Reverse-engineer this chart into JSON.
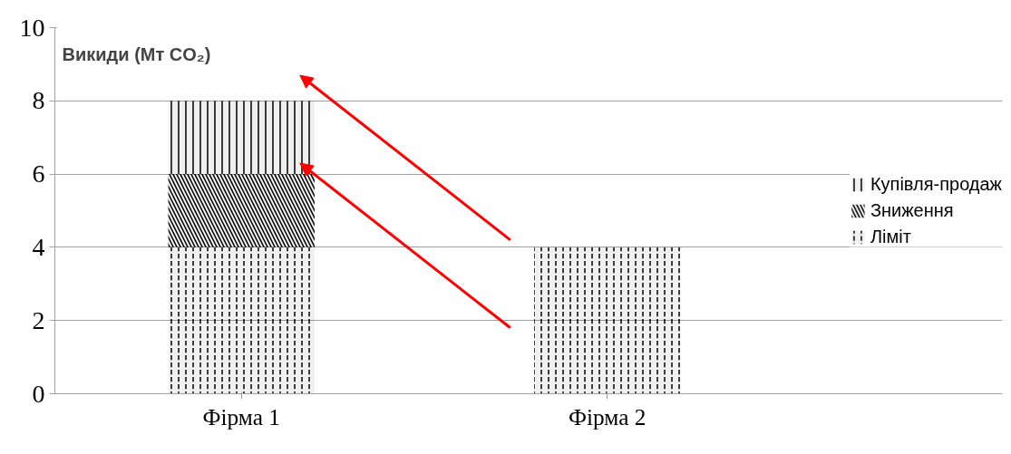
{
  "chart_data": {
    "type": "bar",
    "stacked": true,
    "ylabel": "Викиди (Мт CO₂)",
    "categories": [
      "Фірма 1",
      "Фірма 2"
    ],
    "series": [
      {
        "name": "Ліміт",
        "color": "#000000",
        "values": [
          4,
          4
        ]
      },
      {
        "name": "Зниження",
        "color": "#000000",
        "values": [
          2,
          0
        ]
      },
      {
        "name": "Купівля-продаж",
        "color": "#000000",
        "values": [
          2,
          0
        ]
      }
    ],
    "ylim": [
      0,
      10
    ],
    "yticks": [
      0,
      2,
      4,
      6,
      8,
      10
    ],
    "grid": "y",
    "legend": "right"
  }
}
